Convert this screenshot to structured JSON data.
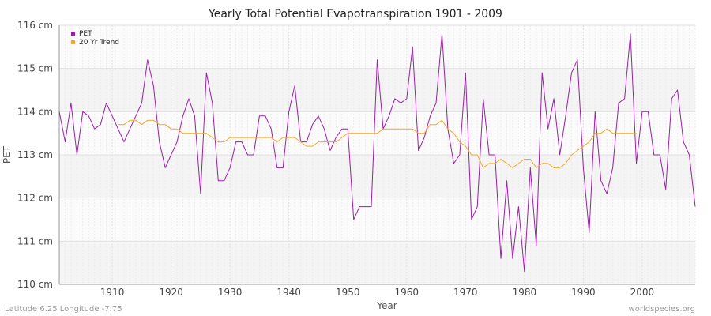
{
  "chart_data": {
    "type": "line",
    "title": "Yearly Total Potential Evapotranspiration 1901 - 2009",
    "xlabel": "Year",
    "ylabel": "PET",
    "xlim": [
      1901,
      2009
    ],
    "ylim": [
      110,
      116
    ],
    "x_ticks": [
      1910,
      1920,
      1930,
      1940,
      1950,
      1960,
      1970,
      1980,
      1990,
      2000
    ],
    "y_ticks": [
      {
        "value": 110,
        "label": "110 cm"
      },
      {
        "value": 111,
        "label": "111 cm"
      },
      {
        "value": 112,
        "label": "112 cm"
      },
      {
        "value": 113,
        "label": "113 cm"
      },
      {
        "value": 114,
        "label": "114 cm"
      },
      {
        "value": 115,
        "label": "115 cm"
      },
      {
        "value": 116,
        "label": "116 cm"
      }
    ],
    "legend": {
      "position": "top-left",
      "entries": [
        "PET",
        "20 Yr Trend"
      ]
    },
    "series": [
      {
        "name": "PET",
        "color": "#9b1fa8",
        "x_start": 1901,
        "values": [
          114.0,
          113.3,
          114.2,
          113.0,
          114.0,
          113.9,
          113.6,
          113.7,
          114.2,
          113.9,
          113.6,
          113.3,
          113.6,
          113.9,
          114.2,
          115.2,
          114.6,
          113.3,
          112.7,
          113.0,
          113.3,
          113.9,
          114.3,
          113.9,
          112.1,
          114.9,
          114.2,
          112.4,
          112.4,
          112.7,
          113.3,
          113.3,
          113.0,
          113.0,
          113.9,
          113.9,
          113.6,
          112.7,
          112.7,
          114.0,
          114.6,
          113.3,
          113.3,
          113.7,
          113.9,
          113.6,
          113.1,
          113.4,
          113.6,
          113.6,
          111.5,
          111.8,
          111.8,
          111.8,
          115.2,
          113.6,
          113.9,
          114.3,
          114.2,
          114.3,
          115.5,
          113.1,
          113.4,
          113.9,
          114.2,
          115.8,
          113.6,
          112.8,
          113.0,
          114.9,
          111.5,
          111.8,
          114.3,
          113.0,
          113.0,
          110.6,
          112.4,
          110.6,
          111.8,
          110.3,
          112.7,
          110.9,
          114.9,
          113.6,
          114.3,
          113.0,
          113.9,
          114.9,
          115.2,
          112.7,
          111.2,
          114.0,
          112.4,
          112.1,
          112.7,
          114.2,
          114.3,
          115.8,
          112.8,
          114.0,
          114.0,
          113.0,
          113.0,
          112.2,
          114.3,
          114.5,
          113.3,
          113.0,
          111.8
        ]
      },
      {
        "name": "20 Yr Trend",
        "color": "#f5a623",
        "x_start": 1911,
        "values": [
          113.7,
          113.7,
          113.8,
          113.8,
          113.7,
          113.8,
          113.8,
          113.7,
          113.7,
          113.6,
          113.6,
          113.5,
          113.5,
          113.5,
          113.5,
          113.5,
          113.4,
          113.3,
          113.3,
          113.4,
          113.4,
          113.4,
          113.4,
          113.4,
          113.4,
          113.4,
          113.4,
          113.3,
          113.4,
          113.4,
          113.4,
          113.3,
          113.2,
          113.2,
          113.3,
          113.3,
          113.3,
          113.3,
          113.4,
          113.5,
          113.5,
          113.5,
          113.5,
          113.5,
          113.5,
          113.6,
          113.6,
          113.6,
          113.6,
          113.6,
          113.6,
          113.5,
          113.5,
          113.7,
          113.7,
          113.8,
          113.6,
          113.5,
          113.3,
          113.2,
          113.0,
          113.0,
          112.7,
          112.8,
          112.8,
          112.9,
          112.8,
          112.7,
          112.8,
          112.9,
          112.9,
          112.7,
          112.8,
          112.8,
          112.7,
          112.7,
          112.8,
          113.0,
          113.1,
          113.2,
          113.3,
          113.5,
          113.5,
          113.6,
          113.5,
          113.5,
          113.5,
          113.5,
          113.5
        ]
      }
    ]
  },
  "footer": {
    "left": "Latitude 6.25 Longitude -7.75",
    "right": "worldspecies.org"
  }
}
